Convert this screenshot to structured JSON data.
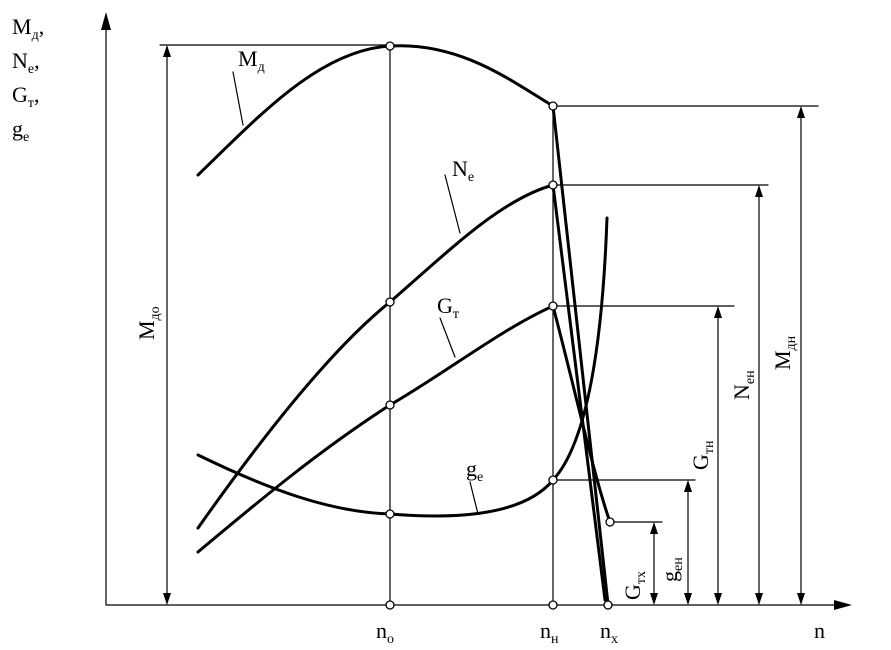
{
  "axes": {
    "y_label_lines": [
      {
        "base": "M",
        "sub": "д",
        "suffix": ","
      },
      {
        "base": "N",
        "sub": "e",
        "suffix": ","
      },
      {
        "base": "G",
        "sub": "т",
        "suffix": ","
      },
      {
        "base": "g",
        "sub": "e",
        "suffix": ""
      }
    ],
    "x_label": "n",
    "x_ticks": [
      {
        "base": "n",
        "sub": "o"
      },
      {
        "base": "n",
        "sub": "н"
      },
      {
        "base": "n",
        "sub": "x"
      }
    ]
  },
  "curves": [
    {
      "base": "M",
      "sub": "д"
    },
    {
      "base": "N",
      "sub": "e"
    },
    {
      "base": "G",
      "sub": "т"
    },
    {
      "base": "g",
      "sub": "e"
    }
  ],
  "dimensions": [
    {
      "base": "M",
      "sub": "до"
    },
    {
      "base": "M",
      "sub": "дн"
    },
    {
      "base": "N",
      "sub": "ен"
    },
    {
      "base": "G",
      "sub": "тн"
    },
    {
      "base": "g",
      "sub": "ен"
    },
    {
      "base": "G",
      "sub": "тх"
    }
  ]
}
